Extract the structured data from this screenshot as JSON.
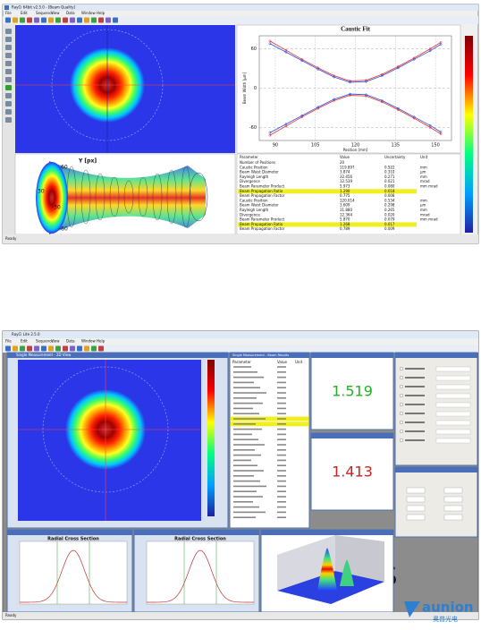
{
  "top_window": {
    "title": "RayCi 64bit v2.5.0 - [Beam Quality]",
    "menu": [
      "File",
      "Edit",
      "Sequence",
      "View",
      "Data",
      "Window",
      "Help"
    ],
    "beam_axis_label": "Y [px]",
    "caustic_labels": [
      "60",
      "30",
      "-30",
      "-60"
    ],
    "caustic_fit": {
      "type": "line",
      "title": "Caustic Fit",
      "x_label": "Position [mm]",
      "y_label": "Beam Width [µm]",
      "x": [
        88,
        94,
        100,
        106,
        112,
        118,
        124,
        130,
        136,
        142,
        148,
        152
      ],
      "series": [
        {
          "color": "#e03030",
          "values": [
            72,
            58,
            44,
            31,
            19,
            11,
            12,
            21,
            33,
            46,
            60,
            70
          ]
        },
        {
          "color": "#3050e0",
          "values": [
            68,
            55,
            42,
            29,
            17,
            9,
            10,
            19,
            31,
            44,
            57,
            67
          ]
        },
        {
          "color": "#e03030",
          "values": [
            -72,
            -58,
            -44,
            -31,
            -19,
            -11,
            -12,
            -21,
            -33,
            -46,
            -60,
            -70
          ]
        },
        {
          "color": "#3050e0",
          "values": [
            -68,
            -55,
            -42,
            -29,
            -17,
            -9,
            -10,
            -19,
            -31,
            -44,
            -57,
            -67
          ]
        }
      ],
      "xlim": [
        84,
        156
      ],
      "ylim": [
        -80,
        80
      ],
      "xticks": [
        90,
        105,
        120,
        135,
        150
      ],
      "yticks": [
        -60,
        0,
        60
      ],
      "grid": true
    },
    "table": {
      "header": [
        "Parameter",
        "Value",
        "Uncertainty",
        "Unit"
      ],
      "rows": [
        [
          "Number of Positions",
          "20",
          "",
          ""
        ],
        [
          "Caustic Position",
          "119.897",
          "0.522",
          "mm"
        ],
        [
          "Beam Waist Diameter",
          "3.874",
          "0.310",
          "µm"
        ],
        [
          "Rayleigh Length",
          "32.456",
          "0.271",
          "mm"
        ],
        [
          "Divergence",
          "12.539",
          "0.021",
          "mrad"
        ],
        [
          "Beam Parameter Product",
          "5.973",
          "0.080",
          "mm mrad"
        ],
        [
          "Beam Propagation Ratio",
          "1.290",
          "0.018",
          ""
        ],
        [
          "Beam Propagation Factor",
          "0.775",
          "0.008",
          ""
        ],
        [
          "Caustic Position",
          "120.014",
          "0.534",
          "mm"
        ],
        [
          "Beam Waist Diameter",
          "3.609",
          "0.298",
          "µm"
        ],
        [
          "Rayleigh Length",
          "31.880",
          "0.265",
          "mm"
        ],
        [
          "Divergence",
          "12.364",
          "0.020",
          "mrad"
        ],
        [
          "Beam Parameter Product",
          "5.870",
          "0.079",
          "mm mrad"
        ],
        [
          "Beam Propagation Ratio",
          "1.268",
          "0.017",
          ""
        ],
        [
          "Beam Propagation Factor",
          "0.789",
          "0.009",
          ""
        ]
      ],
      "highlight": [
        6,
        13
      ]
    },
    "status": "Ready"
  },
  "bottom_window": {
    "title": "RayCi Lite 2.5.0",
    "menu": [
      "File",
      "Edit",
      "Sequence",
      "View",
      "Data",
      "Window",
      "Help"
    ],
    "view_title": "Single Measurement - 2D View",
    "table_title": "Single Measurement - Beam Results",
    "table_header": [
      "Parameter",
      "Value",
      "Unit"
    ],
    "readouts": [
      {
        "value": "1.519",
        "color": "#22b022"
      },
      {
        "value": "1.413",
        "color": "#d02020"
      }
    ],
    "cross_sections": [
      "Radial Cross Section",
      "Radial Cross Section"
    ],
    "letters": "E S",
    "status": "Ready"
  },
  "watermark": {
    "brand": "aunion",
    "sub": "奥普光电"
  }
}
